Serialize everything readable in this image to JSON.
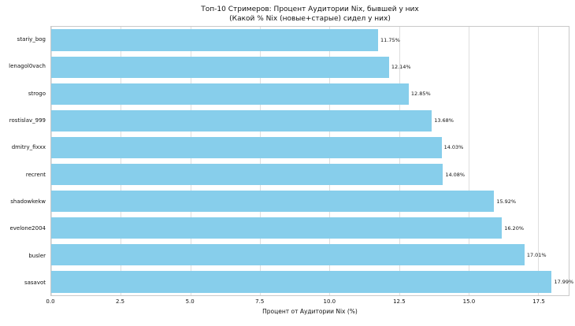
{
  "chart_data": {
    "type": "bar",
    "orientation": "horizontal",
    "title": "Топ-10 Стримеров: Процент Аудитории Nix, бывшей у них",
    "subtitle": "(Какой % Nix (новые+старые) сидел у них)",
    "categories": [
      "stariy_bog",
      "lenagol0vach",
      "strogo",
      "rostislav_999",
      "dmitry_fixxx",
      "recrent",
      "shadowkekw",
      "evelone2004",
      "busler",
      "sasavot"
    ],
    "values": [
      11.75,
      12.14,
      12.85,
      13.68,
      14.03,
      14.08,
      15.92,
      16.2,
      17.01,
      17.99
    ],
    "value_labels": [
      "11.75%",
      "12.14%",
      "12.85%",
      "13.68%",
      "14.03%",
      "14.08%",
      "15.92%",
      "16.20%",
      "17.01%",
      "17.99%"
    ],
    "xlabel": "Процент от Аудитории Nix (%)",
    "xticks": [
      0.0,
      2.5,
      5.0,
      7.5,
      10.0,
      12.5,
      15.0,
      17.5
    ],
    "xtick_labels": [
      "0.0",
      "2.5",
      "5.0",
      "7.5",
      "10.0",
      "12.5",
      "15.0",
      "17.5"
    ],
    "xlim": [
      0,
      18.6
    ],
    "bar_color": "#87CEEB",
    "grid": true,
    "grid_color": "#dedede",
    "legend": false
  }
}
